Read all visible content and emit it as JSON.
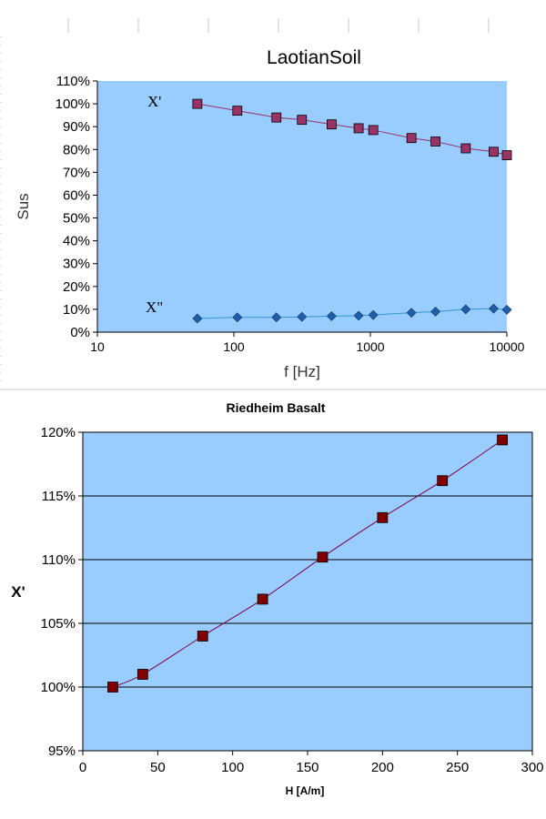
{
  "colors": {
    "plot_bg": "#99ccff",
    "series1": "#993366",
    "series1_marker": "#993366",
    "series2_line": "#3399cc",
    "series2_marker": "#1f5fa8",
    "series3_line": "#800040",
    "series3_marker": "#800000",
    "gridline": "#000000"
  },
  "chart_data": [
    {
      "type": "scatter",
      "title": "LaotianSoil",
      "xlabel": "f [Hz]",
      "ylabel": "Sus",
      "xscale": "log",
      "xlim": [
        10,
        10000
      ],
      "ylim": [
        0,
        1.1
      ],
      "x_ticks": [
        "10",
        "100",
        "1000",
        "10000"
      ],
      "y_ticks": [
        "0%",
        "10%",
        "20%",
        "30%",
        "40%",
        "50%",
        "60%",
        "70%",
        "80%",
        "90%",
        "100%",
        "110%"
      ],
      "grid": false,
      "series": [
        {
          "name": "X'",
          "marker": "square",
          "x": [
            54,
            106,
            205,
            315,
            520,
            820,
            1050,
            2000,
            3000,
            5000,
            8000,
            10000
          ],
          "y": [
            1.0,
            0.97,
            0.94,
            0.93,
            0.91,
            0.893,
            0.885,
            0.85,
            0.835,
            0.805,
            0.79,
            0.775
          ]
        },
        {
          "name": "X\"",
          "marker": "diamond",
          "x": [
            54,
            106,
            205,
            315,
            520,
            820,
            1050,
            2000,
            3000,
            5000,
            8000,
            10000
          ],
          "y": [
            0.06,
            0.065,
            0.065,
            0.067,
            0.07,
            0.072,
            0.075,
            0.085,
            0.09,
            0.1,
            0.103,
            0.098
          ]
        }
      ]
    },
    {
      "type": "line",
      "title": "Riedheim Basalt",
      "xlabel": "H [A/m]",
      "ylabel": "X'",
      "xlim": [
        0,
        300
      ],
      "ylim": [
        0.95,
        1.2
      ],
      "x_ticks": [
        "0",
        "50",
        "100",
        "150",
        "200",
        "250",
        "300"
      ],
      "y_ticks": [
        "95%",
        "100%",
        "105%",
        "110%",
        "115%",
        "120%"
      ],
      "grid": "horizontal",
      "series": [
        {
          "marker": "square",
          "x": [
            20,
            40,
            80,
            120,
            160,
            200,
            240,
            280
          ],
          "y": [
            1.0,
            1.01,
            1.04,
            1.069,
            1.102,
            1.133,
            1.162,
            1.194
          ]
        }
      ]
    }
  ]
}
